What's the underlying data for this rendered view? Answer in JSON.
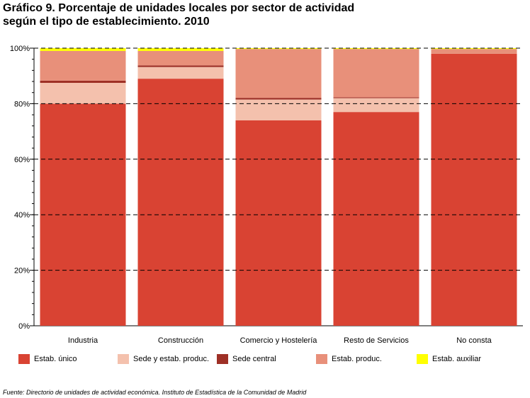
{
  "title_line1": "Gráfico 9. Porcentaje de unidades locales por sector de actividad",
  "title_line2": "según el tipo de establecimiento. 2010",
  "source": "Fuente: Directorio de unidades de actividad económica. Instituto de Estadística de la Comunidad de Madrid",
  "colors": {
    "Estab. único": "#d94333",
    "Sede y estab. produc.": "#f4c1ad",
    "Sede central": "#9e3026",
    "Estab. produc.": "#e8907a",
    "Estab. auxiliar": "#ffff00"
  },
  "chart_data": {
    "type": "bar",
    "stacked": true,
    "normalized_percent": true,
    "title": "Gráfico 9. Porcentaje de unidades locales por sector de actividad según el tipo de establecimiento. 2010",
    "xlabel": "",
    "ylabel": "",
    "ylim": [
      0,
      100
    ],
    "yticks": [
      "0%",
      "20%",
      "40%",
      "60%",
      "80%",
      "100%"
    ],
    "grid": "horizontal dashed at 20% intervals",
    "legend_position": "bottom",
    "categories": [
      "Industria",
      "Construcción",
      "Comercio y Hostelería",
      "Resto de Servicios",
      "No consta"
    ],
    "series": [
      {
        "name": "Estab. único",
        "values": [
          80.0,
          89.0,
          74.0,
          77.0,
          98.0
        ]
      },
      {
        "name": "Sede y estab. produc.",
        "values": [
          7.5,
          4.2,
          7.5,
          5.0,
          0.0
        ]
      },
      {
        "name": "Sede central",
        "values": [
          0.8,
          0.6,
          0.6,
          0.3,
          0.0
        ]
      },
      {
        "name": "Estab. produc.",
        "values": [
          10.7,
          5.2,
          17.6,
          17.4,
          1.7
        ]
      },
      {
        "name": "Estab. auxiliar",
        "values": [
          1.0,
          1.0,
          0.3,
          0.3,
          0.3
        ]
      }
    ]
  }
}
